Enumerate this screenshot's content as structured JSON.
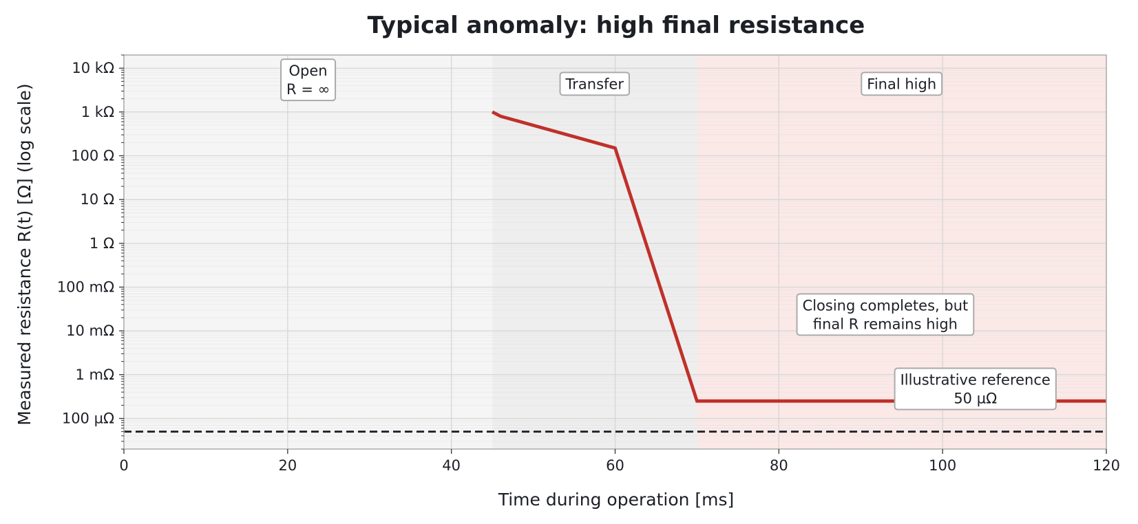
{
  "chart_data": {
    "type": "line",
    "title": "Typical anomaly: high final resistance",
    "xlabel": "Time during operation [ms]",
    "ylabel": "Measured resistance R(t) [Ω] (log scale)",
    "xlim": [
      0,
      120
    ],
    "ylim": [
      2e-05,
      20000
    ],
    "yscale": "log",
    "grid": true,
    "x_ticks": [
      0,
      20,
      40,
      60,
      80,
      100,
      120
    ],
    "x_tick_labels": [
      "0",
      "20",
      "40",
      "60",
      "80",
      "100",
      "120"
    ],
    "y_ticks": [
      0.0001,
      0.001,
      0.01,
      0.1,
      1,
      10,
      100,
      1000,
      10000
    ],
    "y_tick_labels": [
      "100 µΩ",
      "1 mΩ",
      "10 mΩ",
      "100 mΩ",
      "1 Ω",
      "10 Ω",
      "100 Ω",
      "1 kΩ",
      "10 kΩ"
    ],
    "regions": [
      {
        "x0": 0,
        "x1": 45,
        "color": "#f5f5f5"
      },
      {
        "x0": 45,
        "x1": 70,
        "color": "#eeeeee"
      },
      {
        "x0": 70,
        "x1": 120,
        "color": "#fbe9e7"
      }
    ],
    "series": [
      {
        "color": "#c0302a",
        "x": [
          45,
          46,
          60,
          70,
          120
        ],
        "y": [
          1000,
          800,
          150,
          0.00025,
          0.00025
        ]
      }
    ],
    "reference_line": {
      "y": 5e-05,
      "color": "#1c1f26",
      "style": "dashed"
    },
    "annotations": [
      {
        "id": "open",
        "lines": [
          "Open",
          "R = ∞"
        ],
        "x": 22.5,
        "y_top": 16000
      },
      {
        "id": "transfer",
        "lines": [
          "Transfer"
        ],
        "x": 57.5,
        "y_top": 8000
      },
      {
        "id": "final-high",
        "lines": [
          "Final high"
        ],
        "x": 95,
        "y_top": 8000
      },
      {
        "id": "closing",
        "lines": [
          "Closing completes, but",
          "final R remains high"
        ],
        "x": 93,
        "y_top": 0.07
      },
      {
        "id": "reference",
        "lines": [
          "Illustrative reference",
          "50 µΩ"
        ],
        "x": 104,
        "y_top": 0.0014
      }
    ]
  }
}
